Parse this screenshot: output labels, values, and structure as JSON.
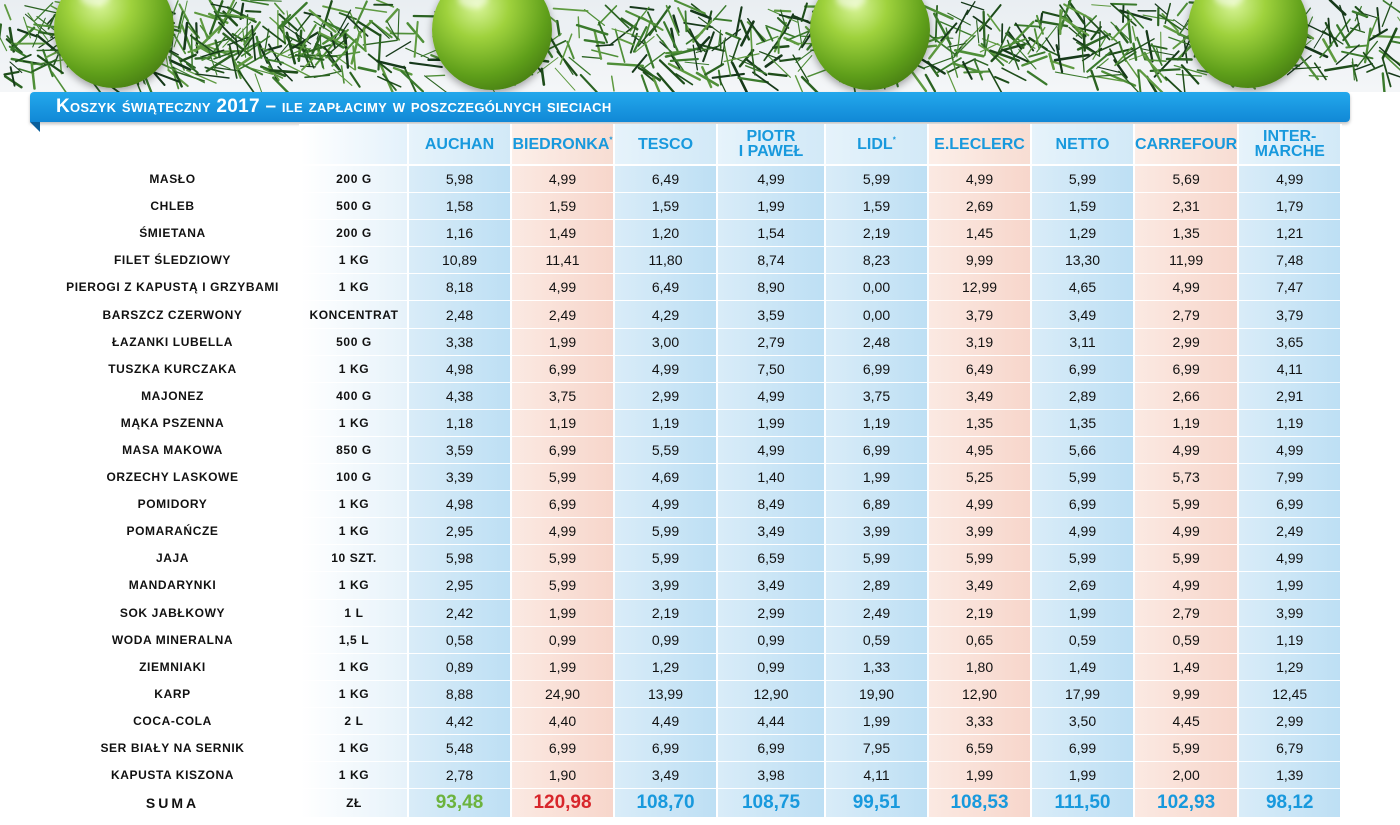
{
  "title": "Koszyk świąteczny 2017 – ile zapłacimy w poszczególnych sieciach",
  "colors": {
    "banner": "#1799e0",
    "header_text": "#1899dd",
    "best_total": "#6cb33e",
    "worst_total": "#d8262b",
    "other_total": "#1899dd"
  },
  "decoration": {
    "ornament_icon": "green-christmas-bauble-icon",
    "garland_icon": "pine-garland-icon"
  },
  "stores": [
    {
      "name": "AUCHAN",
      "line2": "",
      "mark": "",
      "shade": "blue"
    },
    {
      "name": "BIEDRONKA",
      "line2": "",
      "mark": "*",
      "shade": "pink"
    },
    {
      "name": "TESCO",
      "line2": "",
      "mark": "",
      "shade": "blue"
    },
    {
      "name": "PIOTR",
      "line2": "I PAWEŁ",
      "mark": "",
      "shade": "blue"
    },
    {
      "name": "LIDL",
      "line2": "",
      "mark": "*",
      "shade": "blue"
    },
    {
      "name": "E.LECLERC",
      "line2": "",
      "mark": "",
      "shade": "pink"
    },
    {
      "name": "NETTO",
      "line2": "",
      "mark": "",
      "shade": "blue"
    },
    {
      "name": "CARREFOUR",
      "line2": "",
      "mark": "",
      "shade": "pink"
    },
    {
      "name": "INTER-",
      "line2": "MARCHE",
      "mark": "",
      "shade": "blue"
    }
  ],
  "rows": [
    {
      "product": "masło",
      "unit": "200 g",
      "prices": [
        "5,98",
        "4,99",
        "6,49",
        "4,99",
        "5,99",
        "4,99",
        "5,99",
        "5,69",
        "4,99"
      ]
    },
    {
      "product": "chleb",
      "unit": "500 g",
      "prices": [
        "1,58",
        "1,59",
        "1,59",
        "1,99",
        "1,59",
        "2,69",
        "1,59",
        "2,31",
        "1,79"
      ]
    },
    {
      "product": "śmietana",
      "unit": "200 g",
      "prices": [
        "1,16",
        "1,49",
        "1,20",
        "1,54",
        "2,19",
        "1,45",
        "1,29",
        "1,35",
        "1,21"
      ]
    },
    {
      "product": "filet śledziowy",
      "unit": "1 kg",
      "prices": [
        "10,89",
        "11,41",
        "11,80",
        "8,74",
        "8,23",
        "9,99",
        "13,30",
        "11,99",
        "7,48"
      ]
    },
    {
      "product": "pierogi z kapustą i grzybami",
      "unit": "1 kg",
      "prices": [
        "8,18",
        "4,99",
        "6,49",
        "8,90",
        "0,00",
        "12,99",
        "4,65",
        "4,99",
        "7,47"
      ]
    },
    {
      "product": "barszcz czerwony",
      "unit": "koncentrat",
      "prices": [
        "2,48",
        "2,49",
        "4,29",
        "3,59",
        "0,00",
        "3,79",
        "3,49",
        "2,79",
        "3,79"
      ]
    },
    {
      "product": "łazanki Lubella",
      "unit": "500 g",
      "prices": [
        "3,38",
        "1,99",
        "3,00",
        "2,79",
        "2,48",
        "3,19",
        "3,11",
        "2,99",
        "3,65"
      ]
    },
    {
      "product": "tuszka kurczaka",
      "unit": "1 kg",
      "prices": [
        "4,98",
        "6,99",
        "4,99",
        "7,50",
        "6,99",
        "6,49",
        "6,99",
        "6,99",
        "4,11"
      ]
    },
    {
      "product": "majonez",
      "unit": "400 g",
      "prices": [
        "4,38",
        "3,75",
        "2,99",
        "4,99",
        "3,75",
        "3,49",
        "2,89",
        "2,66",
        "2,91"
      ]
    },
    {
      "product": "mąka pszenna",
      "unit": "1 kg",
      "prices": [
        "1,18",
        "1,19",
        "1,19",
        "1,99",
        "1,19",
        "1,35",
        "1,35",
        "1,19",
        "1,19"
      ]
    },
    {
      "product": "masa makowa",
      "unit": "850 g",
      "prices": [
        "3,59",
        "6,99",
        "5,59",
        "4,99",
        "6,99",
        "4,95",
        "5,66",
        "4,99",
        "4,99"
      ]
    },
    {
      "product": "orzechy laskowe",
      "unit": "100 g",
      "prices": [
        "3,39",
        "5,99",
        "4,69",
        "1,40",
        "1,99",
        "5,25",
        "5,99",
        "5,73",
        "7,99"
      ]
    },
    {
      "product": "pomidory",
      "unit": "1 kg",
      "prices": [
        "4,98",
        "6,99",
        "4,99",
        "8,49",
        "6,89",
        "4,99",
        "6,99",
        "5,99",
        "6,99"
      ]
    },
    {
      "product": "pomarańcze",
      "unit": "1 kg",
      "prices": [
        "2,95",
        "4,99",
        "5,99",
        "3,49",
        "3,99",
        "3,99",
        "4,99",
        "4,99",
        "2,49"
      ]
    },
    {
      "product": "jaja",
      "unit": "10 szt.",
      "prices": [
        "5,98",
        "5,99",
        "5,99",
        "6,59",
        "5,99",
        "5,99",
        "5,99",
        "5,99",
        "4,99"
      ]
    },
    {
      "product": "mandarynki",
      "unit": "1 kg",
      "prices": [
        "2,95",
        "5,99",
        "3,99",
        "3,49",
        "2,89",
        "3,49",
        "2,69",
        "4,99",
        "1,99"
      ]
    },
    {
      "product": "sok jabłkowy",
      "unit": "1 l",
      "prices": [
        "2,42",
        "1,99",
        "2,19",
        "2,99",
        "2,49",
        "2,19",
        "1,99",
        "2,79",
        "3,99"
      ]
    },
    {
      "product": "woda mineralna",
      "unit": "1,5 l",
      "prices": [
        "0,58",
        "0,99",
        "0,99",
        "0,99",
        "0,59",
        "0,65",
        "0,59",
        "0,59",
        "1,19"
      ]
    },
    {
      "product": "ziemniaki",
      "unit": "1 kg",
      "prices": [
        "0,89",
        "1,99",
        "1,29",
        "0,99",
        "1,33",
        "1,80",
        "1,49",
        "1,49",
        "1,29"
      ]
    },
    {
      "product": "karp",
      "unit": "1 kg",
      "prices": [
        "8,88",
        "24,90",
        "13,99",
        "12,90",
        "19,90",
        "12,90",
        "17,99",
        "9,99",
        "12,45"
      ]
    },
    {
      "product": "coca-cola",
      "unit": "2 l",
      "prices": [
        "4,42",
        "4,40",
        "4,49",
        "4,44",
        "1,99",
        "3,33",
        "3,50",
        "4,45",
        "2,99"
      ]
    },
    {
      "product": "ser biały na sernik",
      "unit": "1 kg",
      "prices": [
        "5,48",
        "6,99",
        "6,99",
        "6,99",
        "7,95",
        "6,59",
        "6,99",
        "5,99",
        "6,79"
      ]
    },
    {
      "product": "kapusta kiszona",
      "unit": "1 kg",
      "prices": [
        "2,78",
        "1,90",
        "3,49",
        "3,98",
        "4,11",
        "1,99",
        "1,99",
        "2,00",
        "1,39"
      ]
    }
  ],
  "sum": {
    "label": "SUMA",
    "unit": "zł",
    "totals": [
      "93,48",
      "120,98",
      "108,70",
      "108,75",
      "99,51",
      "108,53",
      "111,50",
      "102,93",
      "98,12"
    ],
    "total_colors": [
      "#6cb33e",
      "#d8262b",
      "#1899dd",
      "#1899dd",
      "#1899dd",
      "#1899dd",
      "#1899dd",
      "#1899dd",
      "#1899dd"
    ]
  }
}
